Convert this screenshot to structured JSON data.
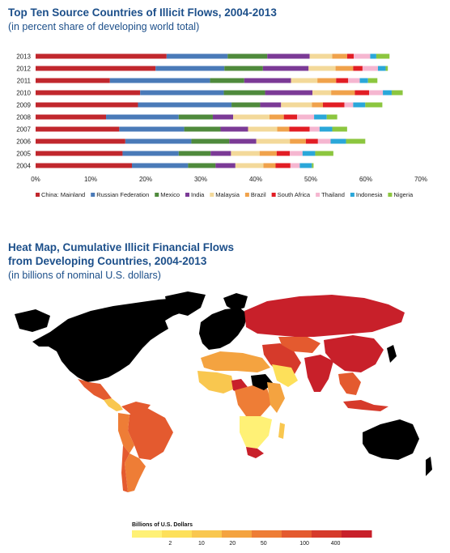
{
  "chart1": {
    "title": "Top Ten Source Countries of Illicit Flows, 2004-2013",
    "subtitle": "(in percent share of developing world total)"
  },
  "map": {
    "title_line1": "Heat Map, Cumulative Illicit Financial Flows",
    "title_line2": "from Developing Countries, 2004-2013",
    "subtitle": "(in billions of nominal U.S. dollars)",
    "scale_title": "Billions of U.S. Dollars",
    "scale_ticks": [
      "2",
      "10",
      "20",
      "50",
      "100",
      "400"
    ],
    "scale_colors": [
      "#fff176",
      "#fde05a",
      "#f9c74f",
      "#f4a340",
      "#ee7d36",
      "#e45a2f",
      "#d63a2b",
      "#c8202a"
    ],
    "high_value_color": "#c8202a",
    "no_data_color": "#000000"
  },
  "chart_data": {
    "type": "bar",
    "orientation": "horizontal",
    "stacked": true,
    "categories": [
      "2013",
      "2012",
      "2011",
      "2010",
      "2009",
      "2008",
      "2007",
      "2006",
      "2005",
      "2004"
    ],
    "xlim": [
      0,
      70
    ],
    "x_ticks": [
      "0%",
      "10%",
      "20%",
      "30%",
      "40%",
      "50%",
      "60%",
      "70%"
    ],
    "legend_position": "bottom",
    "series": [
      {
        "name": "China: Mainland",
        "color": "#c1272d",
        "values": [
          23.8,
          21.8,
          13.5,
          19.0,
          18.6,
          12.8,
          15.2,
          16.3,
          15.8,
          17.5
        ]
      },
      {
        "name": "Russian Federation",
        "color": "#4a7ab8",
        "values": [
          11.1,
          12.5,
          18.2,
          15.2,
          17.0,
          13.2,
          11.8,
          12.0,
          10.2,
          10.2
        ]
      },
      {
        "name": "Mexico",
        "color": "#4f8a3c",
        "values": [
          7.2,
          7.0,
          6.2,
          7.5,
          5.2,
          6.2,
          6.6,
          6.9,
          5.8,
          5.0
        ]
      },
      {
        "name": "India",
        "color": "#7b3a96",
        "values": [
          7.7,
          8.3,
          8.5,
          8.6,
          3.8,
          3.7,
          5.0,
          4.9,
          3.7,
          3.6
        ]
      },
      {
        "name": "Malaysia",
        "color": "#f3d99a",
        "values": [
          4.1,
          4.9,
          4.8,
          3.4,
          5.6,
          6.6,
          5.3,
          6.1,
          5.2,
          5.1
        ]
      },
      {
        "name": "Brazil",
        "color": "#f0a24b",
        "values": [
          2.7,
          3.2,
          3.4,
          4.3,
          2.0,
          2.6,
          2.2,
          2.9,
          3.1,
          2.2
        ]
      },
      {
        "name": "South Africa",
        "color": "#e21d24",
        "values": [
          1.2,
          1.7,
          2.2,
          2.6,
          3.9,
          2.4,
          3.7,
          2.2,
          2.4,
          2.7
        ]
      },
      {
        "name": "Thailand",
        "color": "#f5b6d0",
        "values": [
          3.0,
          2.8,
          2.1,
          2.5,
          1.6,
          3.1,
          1.8,
          2.3,
          2.3,
          1.7
        ]
      },
      {
        "name": "Indonesia",
        "color": "#2aa7d9",
        "values": [
          1.1,
          1.4,
          1.5,
          1.6,
          2.2,
          2.3,
          2.3,
          2.8,
          2.3,
          2.2
        ]
      },
      {
        "name": "Nigeria",
        "color": "#8cc63f",
        "values": [
          2.4,
          0.4,
          1.7,
          2.0,
          3.1,
          1.9,
          2.7,
          3.5,
          3.3,
          0.3
        ]
      }
    ],
    "title": "Top Ten Source Countries of Illicit Flows, 2004-2013",
    "subtitle": "(in percent share of developing world total)",
    "xlabel": "",
    "ylabel": ""
  }
}
